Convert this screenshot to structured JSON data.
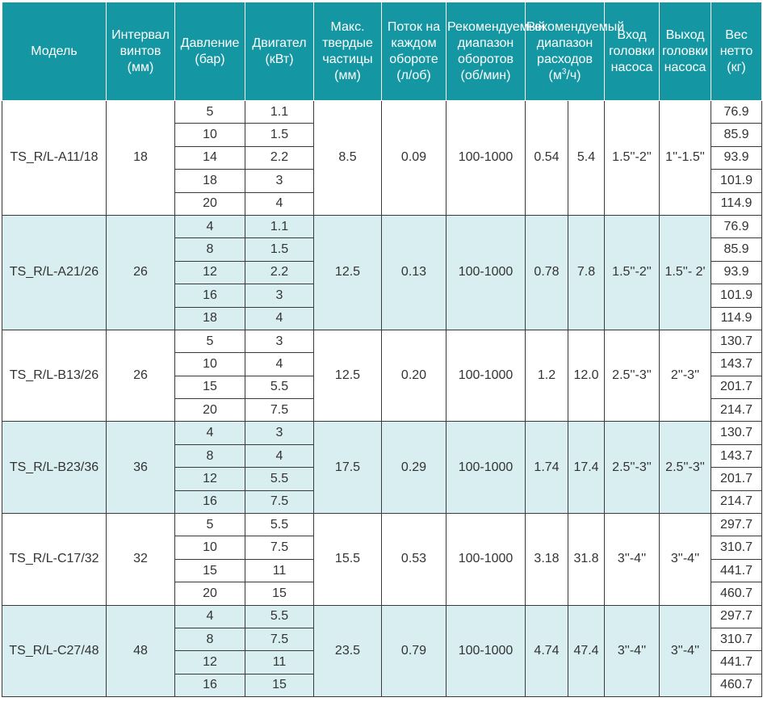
{
  "headers": {
    "model": "Модель",
    "pitch": "Интервал винтов (мм)",
    "pressure": "Давление (бар)",
    "motor": "Двигател (кВт)",
    "solids": "Макс. твердые частицы (мм)",
    "flow_per_rev": "Поток на каждом обороте (л/об)",
    "speed_range": "Рекомендуемый диапазон оборотов (об/мин)",
    "flow_range_pre": "Рекомендуемый диапазон расходов (м",
    "flow_range_sup": "3",
    "flow_range_post": "/ч)",
    "inlet": "Вход головки насоса",
    "outlet": "Выход головки насоса",
    "weight": "Вес нетто (кг)"
  },
  "groups": [
    {
      "model": "TS_R/L-A11/18",
      "pitch": "18",
      "solids": "8.5",
      "flow_rev": "0.09",
      "speed": "100-1000",
      "flow_min": "0.54",
      "flow_max": "5.4",
      "inlet": "1.5''-2''",
      "outlet": "1''-1.5''",
      "rows": [
        {
          "pressure": "5",
          "motor": "1.1",
          "weight": "76.9"
        },
        {
          "pressure": "10",
          "motor": "1.5",
          "weight": "85.9"
        },
        {
          "pressure": "14",
          "motor": "2.2",
          "weight": "93.9"
        },
        {
          "pressure": "18",
          "motor": "3",
          "weight": "101.9"
        },
        {
          "pressure": "20",
          "motor": "4",
          "weight": "114.9"
        }
      ]
    },
    {
      "model": "TS_R/L-A21/26",
      "pitch": "26",
      "solids": "12.5",
      "flow_rev": "0.13",
      "speed": "100-1000",
      "flow_min": "0.78",
      "flow_max": "7.8",
      "inlet": "1.5''-2''",
      "outlet": "1.5''- 2'",
      "rows": [
        {
          "pressure": "4",
          "motor": "1.1",
          "weight": "76.9"
        },
        {
          "pressure": "8",
          "motor": "1.5",
          "weight": "85.9"
        },
        {
          "pressure": "12",
          "motor": "2.2",
          "weight": "93.9"
        },
        {
          "pressure": "16",
          "motor": "3",
          "weight": "101.9"
        },
        {
          "pressure": "18",
          "motor": "4",
          "weight": "114.9"
        }
      ]
    },
    {
      "model": "TS_R/L-B13/26",
      "pitch": "26",
      "solids": "12.5",
      "flow_rev": "0.20",
      "speed": "100-1000",
      "flow_min": "1.2",
      "flow_max": "12.0",
      "inlet": "2.5''-3''",
      "outlet": "2''-3''",
      "rows": [
        {
          "pressure": "5",
          "motor": "3",
          "weight": "130.7"
        },
        {
          "pressure": "10",
          "motor": "4",
          "weight": "143.7"
        },
        {
          "pressure": "15",
          "motor": "5.5",
          "weight": "201.7"
        },
        {
          "pressure": "20",
          "motor": "7.5",
          "weight": "214.7"
        }
      ]
    },
    {
      "model": "TS_R/L-B23/36",
      "pitch": "36",
      "solids": "17.5",
      "flow_rev": "0.29",
      "speed": "100-1000",
      "flow_min": "1.74",
      "flow_max": "17.4",
      "inlet": "2.5''-3''",
      "outlet": "2.5''-3''",
      "rows": [
        {
          "pressure": "4",
          "motor": "3",
          "weight": "130.7"
        },
        {
          "pressure": "8",
          "motor": "4",
          "weight": "143.7"
        },
        {
          "pressure": "12",
          "motor": "5.5",
          "weight": "201.7"
        },
        {
          "pressure": "16",
          "motor": "7.5",
          "weight": "214.7"
        }
      ]
    },
    {
      "model": "TS_R/L-C17/32",
      "pitch": "32",
      "solids": "15.5",
      "flow_rev": "0.53",
      "speed": "100-1000",
      "flow_min": "3.18",
      "flow_max": "31.8",
      "inlet": "3''-4''",
      "outlet": "3''-4''",
      "rows": [
        {
          "pressure": "5",
          "motor": "5.5",
          "weight": "297.7"
        },
        {
          "pressure": "10",
          "motor": "7.5",
          "weight": "310.7"
        },
        {
          "pressure": "15",
          "motor": "11",
          "weight": "441.7"
        },
        {
          "pressure": "20",
          "motor": "15",
          "weight": "460.7"
        }
      ]
    },
    {
      "model": "TS_R/L-C27/48",
      "pitch": "48",
      "solids": "23.5",
      "flow_rev": "0.79",
      "speed": "100-1000",
      "flow_min": "4.74",
      "flow_max": "47.4",
      "inlet": "3''-4''",
      "outlet": "3''-4''",
      "rows": [
        {
          "pressure": "4",
          "motor": "5.5",
          "weight": "297.7"
        },
        {
          "pressure": "8",
          "motor": "7.5",
          "weight": "310.7"
        },
        {
          "pressure": "12",
          "motor": "11",
          "weight": "441.7"
        },
        {
          "pressure": "16",
          "motor": "15",
          "weight": "460.7"
        }
      ]
    }
  ]
}
